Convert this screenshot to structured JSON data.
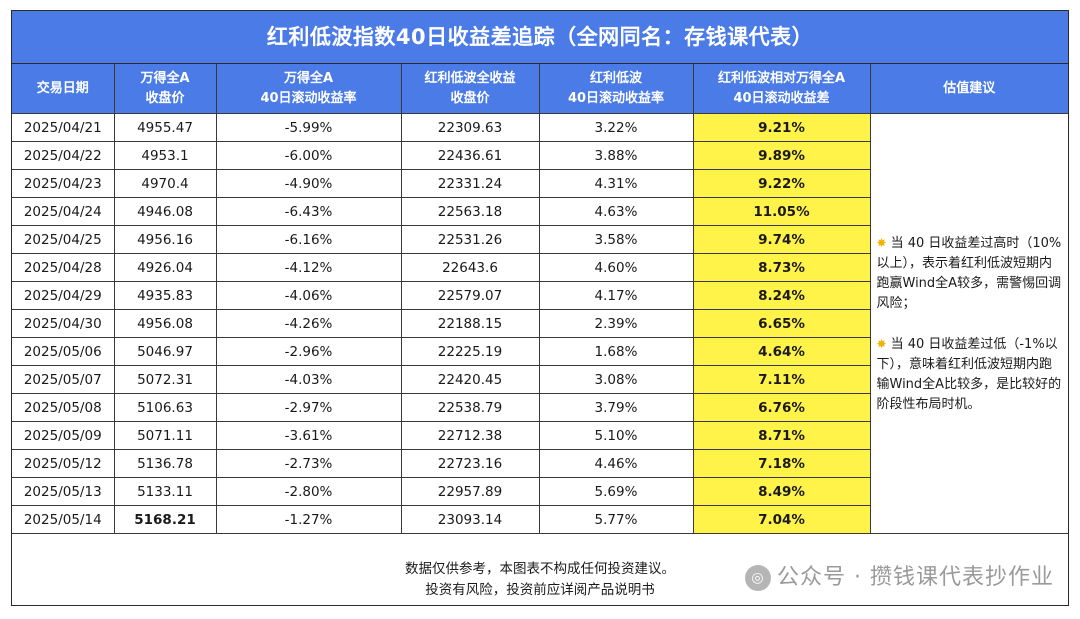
{
  "title": "红利低波指数40日收益差追踪（全网同名：存钱课代表）",
  "headers": [
    [
      "交易日期"
    ],
    [
      "万得全A",
      "收盘价"
    ],
    [
      "万得全A",
      "40日滚动收益率"
    ],
    [
      "红利低波全收益",
      "收盘价"
    ],
    [
      "红利低波",
      "40日滚动收益率"
    ],
    [
      "红利低波相对万得全A",
      "40日滚动收益差"
    ],
    [
      "估值建议"
    ]
  ],
  "rows": [
    {
      "date": "2025/04/21",
      "wind_close": "4955.47",
      "wind_ret": "-5.99%",
      "dv_close": "22309.63",
      "dv_ret": "3.22%",
      "diff": "9.21%"
    },
    {
      "date": "2025/04/22",
      "wind_close": "4953.1",
      "wind_ret": "-6.00%",
      "dv_close": "22436.61",
      "dv_ret": "3.88%",
      "diff": "9.89%"
    },
    {
      "date": "2025/04/23",
      "wind_close": "4970.4",
      "wind_ret": "-4.90%",
      "dv_close": "22331.24",
      "dv_ret": "4.31%",
      "diff": "9.22%"
    },
    {
      "date": "2025/04/24",
      "wind_close": "4946.08",
      "wind_ret": "-6.43%",
      "dv_close": "22563.18",
      "dv_ret": "4.63%",
      "diff": "11.05%"
    },
    {
      "date": "2025/04/25",
      "wind_close": "4956.16",
      "wind_ret": "-6.16%",
      "dv_close": "22531.26",
      "dv_ret": "3.58%",
      "diff": "9.74%"
    },
    {
      "date": "2025/04/28",
      "wind_close": "4926.04",
      "wind_ret": "-4.12%",
      "dv_close": "22643.6",
      "dv_ret": "4.60%",
      "diff": "8.73%"
    },
    {
      "date": "2025/04/29",
      "wind_close": "4935.83",
      "wind_ret": "-4.06%",
      "dv_close": "22579.07",
      "dv_ret": "4.17%",
      "diff": "8.24%"
    },
    {
      "date": "2025/04/30",
      "wind_close": "4956.08",
      "wind_ret": "-4.26%",
      "dv_close": "22188.15",
      "dv_ret": "2.39%",
      "diff": "6.65%"
    },
    {
      "date": "2025/05/06",
      "wind_close": "5046.97",
      "wind_ret": "-2.96%",
      "dv_close": "22225.19",
      "dv_ret": "1.68%",
      "diff": "4.64%"
    },
    {
      "date": "2025/05/07",
      "wind_close": "5072.31",
      "wind_ret": "-4.03%",
      "dv_close": "22420.45",
      "dv_ret": "3.08%",
      "diff": "7.11%"
    },
    {
      "date": "2025/05/08",
      "wind_close": "5106.63",
      "wind_ret": "-2.97%",
      "dv_close": "22538.79",
      "dv_ret": "3.79%",
      "diff": "6.76%"
    },
    {
      "date": "2025/05/09",
      "wind_close": "5071.11",
      "wind_ret": "-3.61%",
      "dv_close": "22712.38",
      "dv_ret": "5.10%",
      "diff": "8.71%"
    },
    {
      "date": "2025/05/12",
      "wind_close": "5136.78",
      "wind_ret": "-2.73%",
      "dv_close": "22723.16",
      "dv_ret": "4.46%",
      "diff": "7.18%"
    },
    {
      "date": "2025/05/13",
      "wind_close": "5133.11",
      "wind_ret": "-2.80%",
      "dv_close": "22957.89",
      "dv_ret": "5.69%",
      "diff": "8.49%"
    },
    {
      "date": "2025/05/14",
      "wind_close": "5168.21",
      "wind_ret": "-1.27%",
      "dv_close": "23093.14",
      "dv_ret": "5.77%",
      "diff": "7.04%"
    }
  ],
  "advice": [
    "当 40 日收益差过高时（10%以上），表示着红利低波短期内跑赢Wind全A较多，需警惕回调风险；",
    "当 40 日收益差过低（-1%以下），意味着红利低波短期内跑输Wind全A比较多，是比较好的阶段性布局时机。"
  ],
  "footer": {
    "line1": "数据仅供参考，本图表不构成任何投资建议。",
    "line2": "投资有风险，投资前应详阅产品说明书"
  },
  "watermark": "公众号 · 攒钱课代表抄作业",
  "colors": {
    "header_bg": "#4a7be6",
    "highlight": "#fff34a"
  }
}
